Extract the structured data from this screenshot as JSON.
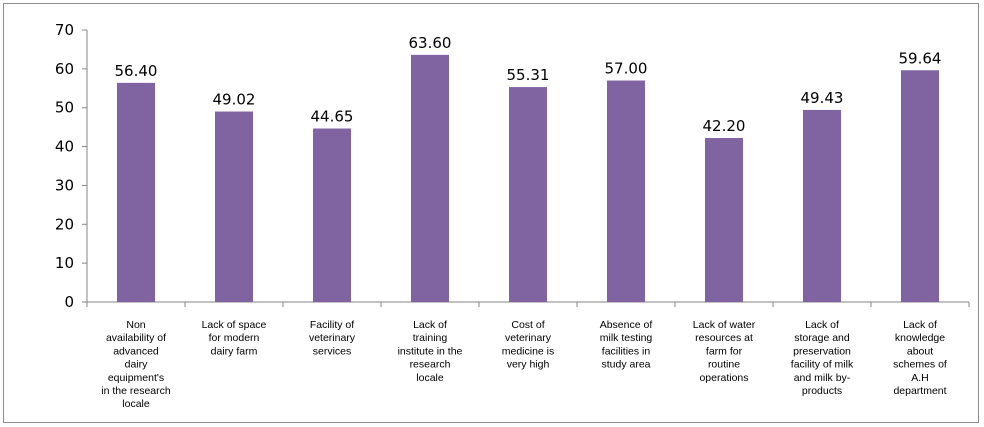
{
  "chart_data": {
    "type": "bar",
    "title": "",
    "xlabel": "",
    "ylabel": "",
    "ylim": [
      0,
      70
    ],
    "yticks": [
      0,
      10,
      20,
      30,
      40,
      50,
      60,
      70
    ],
    "grid": false,
    "legend": "none",
    "bar_color": "#8064a2",
    "categories": [
      [
        "Non",
        "availability of",
        "advanced",
        "dairy",
        "equipment's",
        "in the research",
        "locale"
      ],
      [
        "Lack of space",
        "for modern",
        "dairy farm"
      ],
      [
        "Facility  of",
        "veterinary",
        "services"
      ],
      [
        "Lack of",
        "training",
        "institute in the",
        "research",
        "locale"
      ],
      [
        "Cost of",
        "veterinary",
        "medicine is",
        "very high"
      ],
      [
        "Absence of",
        "milk testing",
        "facilities in",
        "study area"
      ],
      [
        "Lack of water",
        "resources at",
        "farm for",
        "routine",
        "operations"
      ],
      [
        "Lack of",
        "storage and",
        "preservation",
        "facility of milk",
        "and milk by-",
        "products"
      ],
      [
        "Lack of",
        "knowledge",
        "about",
        "schemes of",
        "A.H",
        "department"
      ]
    ],
    "values": [
      56.4,
      49.02,
      44.65,
      63.6,
      55.31,
      57.0,
      42.2,
      49.43,
      59.64
    ],
    "value_labels": [
      "56.40",
      "49.02",
      "44.65",
      "63.60",
      "55.31",
      "57.00",
      "42.20",
      "49.43",
      "59.64"
    ]
  }
}
